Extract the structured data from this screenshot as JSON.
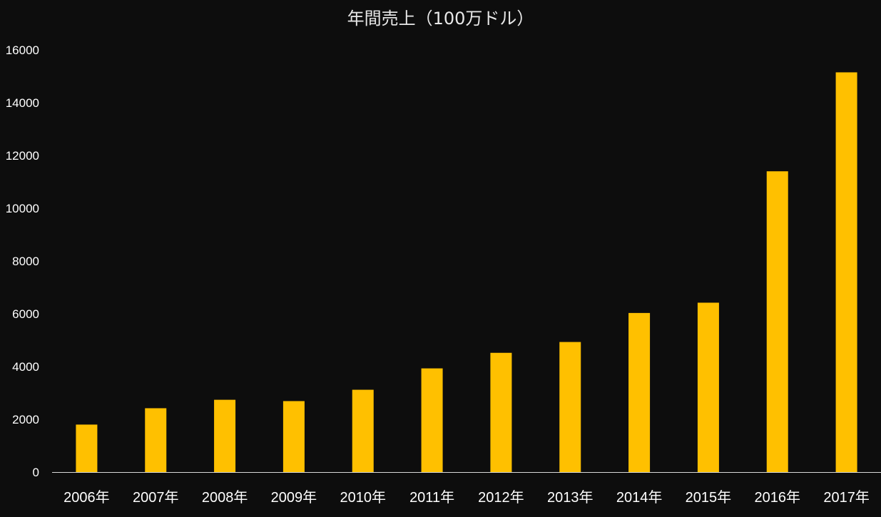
{
  "chart_data": {
    "type": "bar",
    "title": "年間売上（100万ドル）",
    "categories": [
      "2006年",
      "2007年",
      "2008年",
      "2009年",
      "2010年",
      "2011年",
      "2012年",
      "2013年",
      "2014年",
      "2015年",
      "2016年",
      "2017年"
    ],
    "values": [
      1800,
      2420,
      2740,
      2690,
      3120,
      3930,
      4520,
      4930,
      6030,
      6420,
      11400,
      15150
    ],
    "y_ticks": [
      "0",
      "2000",
      "4000",
      "6000",
      "8000",
      "10000",
      "12000",
      "14000",
      "16000"
    ],
    "ylim": [
      0,
      16000
    ],
    "xlabel": "",
    "ylabel": "",
    "grid": false,
    "legend": "none",
    "colors": {
      "bar": "#ffc000",
      "background": "#0d0d0d",
      "text": "#ffffff",
      "axis": "#d9d9d9"
    }
  }
}
